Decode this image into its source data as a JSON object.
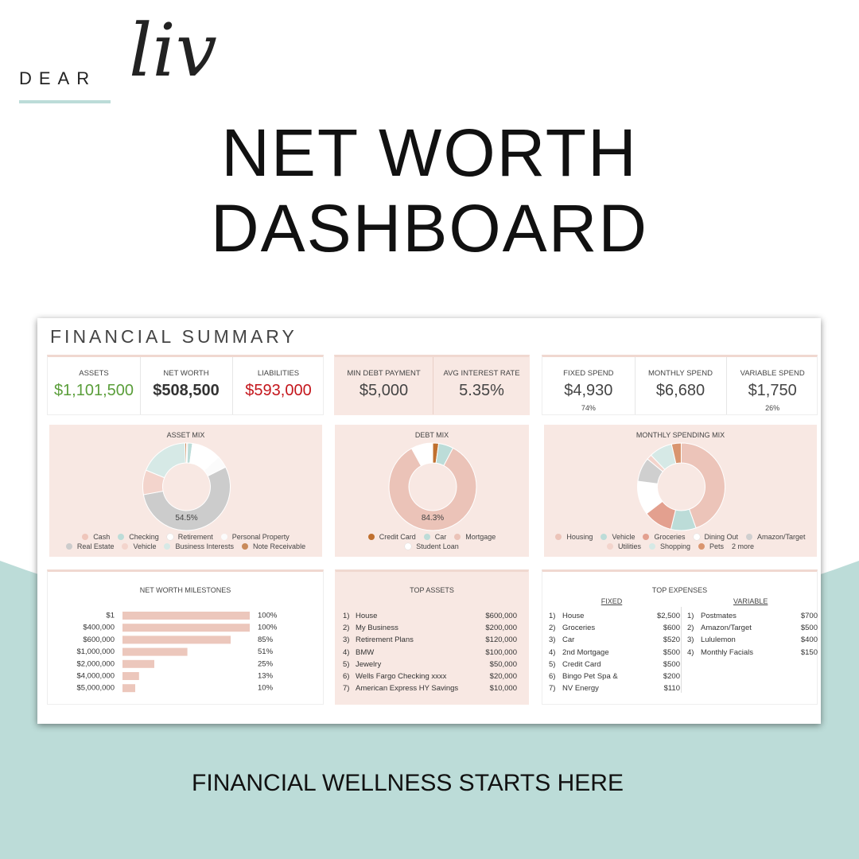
{
  "brand": {
    "word": "DEAR",
    "script": "liv"
  },
  "title": {
    "line1": "NET WORTH",
    "line2": "DASHBOARD"
  },
  "tagline": "FINANCIAL WELLNESS STARTS HERE",
  "summary": {
    "heading": "FINANCIAL SUMMARY",
    "kpi_groups": [
      [
        {
          "label": "ASSETS",
          "value": "$1,101,500",
          "color": "#5a9e3a"
        },
        {
          "label": "NET WORTH",
          "value": "$508,500",
          "color": "#333333"
        },
        {
          "label": "LIABILITIES",
          "value": "$593,000",
          "color": "#c4161c"
        }
      ],
      [
        {
          "label": "MIN DEBT PAYMENT",
          "value": "$5,000"
        },
        {
          "label": "AVG INTEREST RATE",
          "value": "5.35%"
        }
      ],
      [
        {
          "label": "FIXED SPEND",
          "value": "$4,930",
          "share": "74%"
        },
        {
          "label": "MONTHLY SPEND",
          "value": "$6,680"
        },
        {
          "label": "VARIABLE SPEND",
          "value": "$1,750",
          "share": "26%"
        }
      ]
    ],
    "charts": [
      {
        "type": "pie",
        "title": "ASSET MIX",
        "categories": [
          "Cash",
          "Checking",
          "Retirement",
          "Personal Property",
          "Real Estate",
          "Vehicle",
          "Business Interests",
          "Note Receivable"
        ],
        "values": [
          0.4,
          1.8,
          10.9,
          4.5,
          54.5,
          9.1,
          18.2,
          0.6
        ],
        "value_labels": [
          null,
          null,
          null,
          null,
          "54.5%",
          null,
          null,
          null
        ],
        "colors": [
          "#efc6bb",
          "#bcdcd8",
          "#ffffff",
          "#fbfbfb",
          "#cccccc",
          "#f3d4cc",
          "#d6e9e6",
          "#c98a5a"
        ]
      },
      {
        "type": "pie",
        "title": "DEBT MIX",
        "categories": [
          "Credit Card",
          "Car",
          "Mortgage",
          "Student Loan"
        ],
        "values": [
          2.2,
          5.5,
          84.3,
          8.0
        ],
        "value_labels": [
          null,
          null,
          "84.3%",
          null
        ],
        "colors": [
          "#c0702f",
          "#bcdcd8",
          "#ebc3b8",
          "#ffffff"
        ]
      },
      {
        "type": "pie",
        "title": "MONTHLY SPENDING MIX",
        "categories": [
          "Housing",
          "Vehicle",
          "Groceries",
          "Dining Out",
          "Amazon/Target",
          "Utilities",
          "Shopping",
          "Pets"
        ],
        "values": [
          37.4,
          7.8,
          9.0,
          10.5,
          7.5,
          1.6,
          7.2,
          3.0
        ],
        "colors": [
          "#ecc4b9",
          "#bcdcd8",
          "#e3a08f",
          "#ffffff",
          "#cfcfcf",
          "#f3d4cc",
          "#d6e9e6",
          "#d9956f"
        ],
        "more_label": "2 more"
      }
    ],
    "milestones": {
      "type": "bar",
      "title": "NET WORTH MILESTONES",
      "categories": [
        "$1",
        "$400,000",
        "$600,000",
        "$1,000,000",
        "$2,000,000",
        "$4,000,000",
        "$5,000,000"
      ],
      "values": [
        100,
        100,
        85,
        51,
        25,
        13,
        10
      ],
      "value_labels": [
        "100%",
        "100%",
        "85%",
        "51%",
        "25%",
        "13%",
        "10%"
      ],
      "xlim": [
        0,
        100
      ],
      "color": "#ecc7bc"
    },
    "top_assets": {
      "title": "TOP ASSETS",
      "rows": [
        [
          "1)",
          "House",
          "$600,000"
        ],
        [
          "2)",
          "My Business",
          "$200,000"
        ],
        [
          "3)",
          "Retirement Plans",
          "$120,000"
        ],
        [
          "4)",
          "BMW",
          "$100,000"
        ],
        [
          "5)",
          "Jewelry",
          "$50,000"
        ],
        [
          "6)",
          "Wells Fargo Checking xxxx",
          "$20,000"
        ],
        [
          "7)",
          "American Express HY Savings",
          "$10,000"
        ]
      ]
    },
    "top_expenses": {
      "title": "TOP EXPENSES",
      "fixed": {
        "heading": "FIXED",
        "rows": [
          [
            "1)",
            "House",
            "$2,500"
          ],
          [
            "2)",
            "Groceries",
            "$600"
          ],
          [
            "3)",
            "Car",
            "$520"
          ],
          [
            "4)",
            "2nd Mortgage",
            "$500"
          ],
          [
            "5)",
            "Credit Card",
            "$500"
          ],
          [
            "6)",
            "Bingo Pet Spa &",
            "$200"
          ],
          [
            "7)",
            "NV Energy",
            "$110"
          ]
        ]
      },
      "variable": {
        "heading": "VARIABLE",
        "rows": [
          [
            "1)",
            "Postmates",
            "$700"
          ],
          [
            "2)",
            "Amazon/Target",
            "$500"
          ],
          [
            "3)",
            "Lululemon",
            "$400"
          ],
          [
            "4)",
            "Monthly Facials",
            "$150"
          ]
        ]
      }
    }
  }
}
